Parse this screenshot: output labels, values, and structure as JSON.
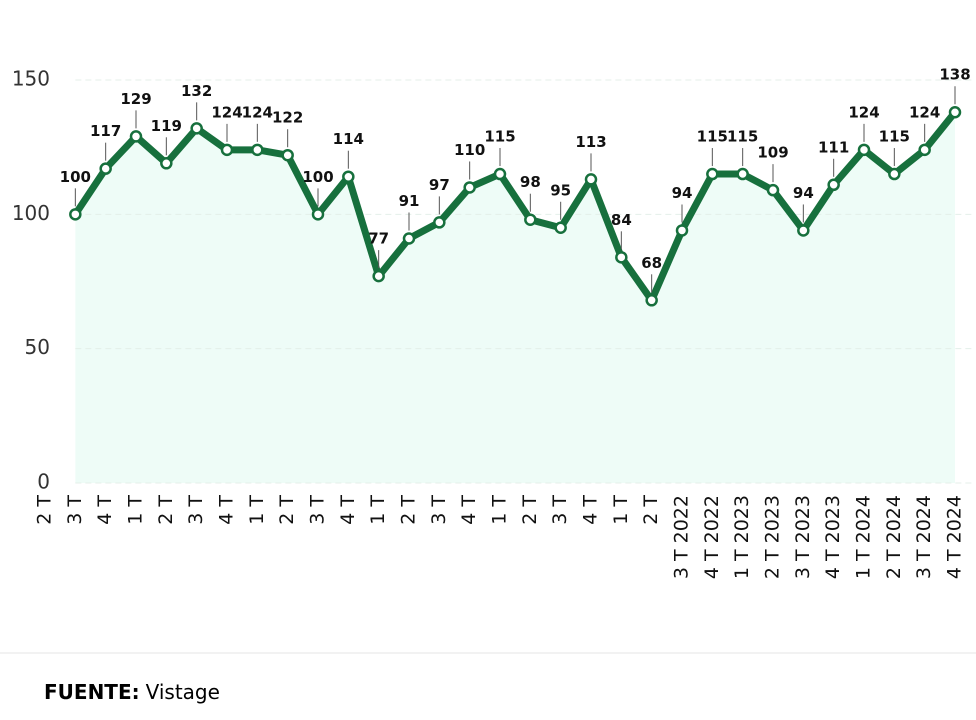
{
  "chart_data": {
    "type": "line",
    "categories": [
      "2 T",
      "3 T",
      "4 T",
      "1 T",
      "2 T",
      "3 T",
      "4 T",
      "1 T",
      "2 T",
      "3 T",
      "4 T",
      "1 T",
      "2 T",
      "3 T",
      "4 T",
      "1 T",
      "2 T",
      "3 T",
      "4 T",
      "1 T",
      "2 T",
      "3 T 2022",
      "4 T 2022",
      "1 T 2023",
      "2 T 2023",
      "3 T 2023",
      "4 T 2023",
      "1 T 2024",
      "2 T 2024",
      "3 T 2024",
      "4 T 2024"
    ],
    "values": [
      null,
      100,
      117,
      129,
      119,
      132,
      124,
      124,
      122,
      100,
      114,
      77,
      91,
      97,
      110,
      115,
      98,
      95,
      113,
      84,
      68,
      94,
      115,
      115,
      109,
      94,
      111,
      124,
      115,
      124,
      138
    ],
    "color": "#17703d",
    "area_color": "#eefcf7",
    "ylim": [
      0,
      150
    ],
    "yticks": [
      0,
      50,
      100,
      150
    ],
    "grid": true,
    "source_label": "FUENTE:",
    "source": "Vistage"
  }
}
